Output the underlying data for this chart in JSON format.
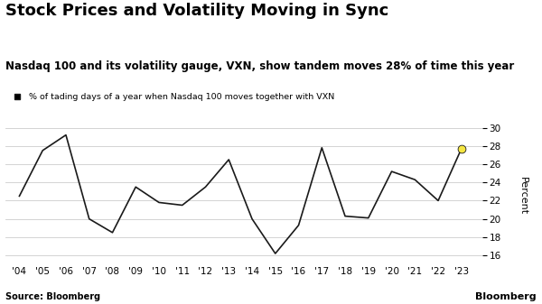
{
  "title": "Stock Prices and Volatility Moving in Sync",
  "subtitle": "Nasdaq 100 and its volatility gauge, VXN, show tandem moves 28% of time this year",
  "legend_label": "% of tading days of a year when Nasdaq 100 moves together with VXN",
  "source": "Source: Bloomberg",
  "branding": "Bloomberg",
  "years": [
    "'04",
    "'05",
    "'06",
    "'07",
    "'08",
    "'09",
    "'10",
    "'11",
    "'12",
    "'13",
    "'14",
    "'15",
    "'16",
    "'17",
    "'18",
    "'19",
    "'20",
    "'21",
    "'22",
    "'23"
  ],
  "x_values": [
    2004,
    2005,
    2006,
    2007,
    2008,
    2009,
    2010,
    2011,
    2012,
    2013,
    2014,
    2015,
    2016,
    2017,
    2018,
    2019,
    2020,
    2021,
    2022,
    2023
  ],
  "y_values": [
    22.5,
    27.5,
    29.2,
    20.0,
    18.5,
    23.5,
    21.8,
    21.5,
    23.5,
    26.5,
    20.0,
    16.2,
    19.3,
    27.8,
    20.3,
    20.1,
    25.2,
    24.3,
    22.0,
    27.7
  ],
  "last_point_color": "#f5e642",
  "line_color": "#1a1a1a",
  "ylim": [
    15,
    30
  ],
  "yticks": [
    16,
    18,
    20,
    22,
    24,
    26,
    28,
    30
  ],
  "background_color": "#ffffff",
  "grid_color": "#cccccc",
  "title_fontsize": 13,
  "subtitle_fontsize": 8.5,
  "legend_fontsize": 6.8,
  "axis_label": "Percent",
  "tick_fontsize": 7.5
}
